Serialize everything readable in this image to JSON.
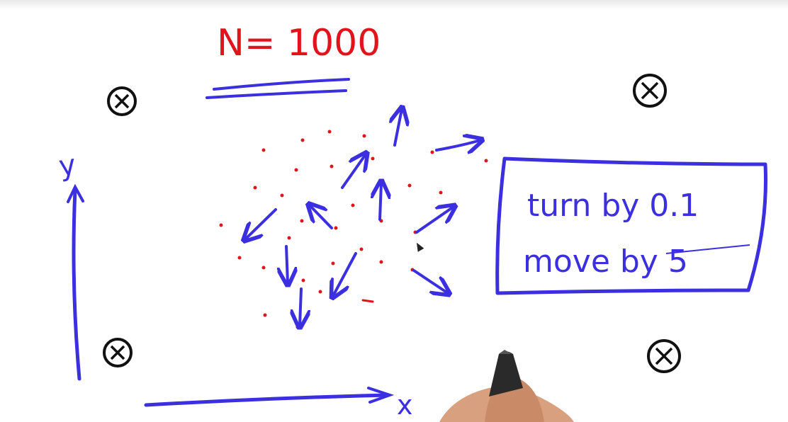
{
  "title": "N= 1000",
  "box": {
    "line1": "turn by 0.1",
    "line2": "move by 5"
  },
  "axes": {
    "x_label": "x",
    "y_label": "y"
  },
  "landmark_glyph": "⊗",
  "colors": {
    "ink_blue": "#3b2fe0",
    "ink_red": "#e0141a",
    "ink_black": "#111111"
  }
}
